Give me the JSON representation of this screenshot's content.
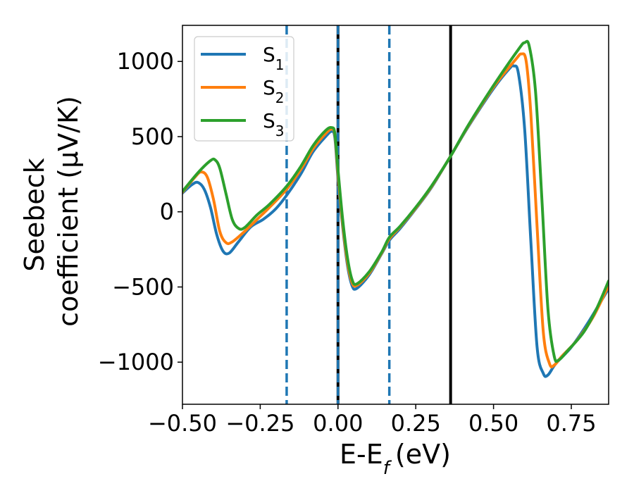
{
  "chart_data": {
    "type": "line",
    "xlabel": "E-E",
    "xlabel_sub": "f",
    "xlabel_unit": "(eV)",
    "ylabel_line1": "Seebeck",
    "ylabel_line2": "coefficient  (μV/K)",
    "xlim": [
      -0.5,
      0.87
    ],
    "ylim": [
      -1280,
      1240
    ],
    "xticks": [
      {
        "value": -0.5,
        "label": "−0.50"
      },
      {
        "value": -0.25,
        "label": "−0.25"
      },
      {
        "value": 0.0,
        "label": "0.00"
      },
      {
        "value": 0.25,
        "label": "0.25"
      },
      {
        "value": 0.5,
        "label": "0.50"
      },
      {
        "value": 0.75,
        "label": "0.75"
      }
    ],
    "yticks": [
      {
        "value": 1000,
        "label": "1000"
      },
      {
        "value": 500,
        "label": "500"
      },
      {
        "value": 0,
        "label": "0"
      },
      {
        "value": -500,
        "label": "−500"
      },
      {
        "value": -1000,
        "label": "−1000"
      }
    ],
    "legend_position": "top-left",
    "vlines": [
      {
        "x": -0.165,
        "color": "#1f77b4",
        "style": "dashed"
      },
      {
        "x": 0.0,
        "color": "#000000",
        "style": "solid"
      },
      {
        "x": 0.0,
        "color": "#1f77b4",
        "style": "dashed"
      },
      {
        "x": 0.165,
        "color": "#1f77b4",
        "style": "dashed"
      },
      {
        "x": 0.362,
        "color": "#000000",
        "style": "solid"
      }
    ],
    "series": [
      {
        "name": "S",
        "sub": "1",
        "color": "#1f77b4",
        "points": [
          [
            -0.5,
            125
          ],
          [
            -0.47,
            180
          ],
          [
            -0.45,
            195
          ],
          [
            -0.43,
            150
          ],
          [
            -0.41,
            30
          ],
          [
            -0.39,
            -150
          ],
          [
            -0.37,
            -260
          ],
          [
            -0.35,
            -275
          ],
          [
            -0.32,
            -200
          ],
          [
            -0.28,
            -100
          ],
          [
            -0.24,
            -50
          ],
          [
            -0.2,
            20
          ],
          [
            -0.165,
            110
          ],
          [
            -0.12,
            250
          ],
          [
            -0.08,
            400
          ],
          [
            -0.04,
            500
          ],
          [
            -0.02,
            535
          ],
          [
            -0.01,
            490
          ],
          [
            0.0,
            220
          ],
          [
            0.015,
            -100
          ],
          [
            0.03,
            -350
          ],
          [
            0.045,
            -490
          ],
          [
            0.06,
            -510
          ],
          [
            0.1,
            -420
          ],
          [
            0.14,
            -280
          ],
          [
            0.165,
            -190
          ],
          [
            0.2,
            -110
          ],
          [
            0.25,
            20
          ],
          [
            0.3,
            160
          ],
          [
            0.362,
            370
          ],
          [
            0.42,
            570
          ],
          [
            0.5,
            820
          ],
          [
            0.55,
            950
          ],
          [
            0.565,
            970
          ],
          [
            0.58,
            920
          ],
          [
            0.6,
            550
          ],
          [
            0.62,
            -200
          ],
          [
            0.64,
            -900
          ],
          [
            0.66,
            -1075
          ],
          [
            0.675,
            -1085
          ],
          [
            0.7,
            -1010
          ],
          [
            0.75,
            -900
          ],
          [
            0.8,
            -750
          ],
          [
            0.87,
            -510
          ]
        ]
      },
      {
        "name": "S",
        "sub": "2",
        "color": "#ff7f0e",
        "points": [
          [
            -0.5,
            130
          ],
          [
            -0.46,
            230
          ],
          [
            -0.44,
            265
          ],
          [
            -0.42,
            230
          ],
          [
            -0.4,
            80
          ],
          [
            -0.38,
            -130
          ],
          [
            -0.36,
            -205
          ],
          [
            -0.34,
            -200
          ],
          [
            -0.3,
            -130
          ],
          [
            -0.26,
            -50
          ],
          [
            -0.22,
            30
          ],
          [
            -0.165,
            150
          ],
          [
            -0.12,
            280
          ],
          [
            -0.08,
            420
          ],
          [
            -0.04,
            520
          ],
          [
            -0.02,
            550
          ],
          [
            -0.01,
            510
          ],
          [
            0.0,
            250
          ],
          [
            0.015,
            -80
          ],
          [
            0.03,
            -330
          ],
          [
            0.045,
            -470
          ],
          [
            0.06,
            -490
          ],
          [
            0.1,
            -410
          ],
          [
            0.14,
            -275
          ],
          [
            0.165,
            -180
          ],
          [
            0.2,
            -100
          ],
          [
            0.25,
            25
          ],
          [
            0.3,
            165
          ],
          [
            0.362,
            370
          ],
          [
            0.42,
            575
          ],
          [
            0.5,
            830
          ],
          [
            0.57,
            1010
          ],
          [
            0.59,
            1050
          ],
          [
            0.605,
            1000
          ],
          [
            0.62,
            650
          ],
          [
            0.64,
            -100
          ],
          [
            0.66,
            -800
          ],
          [
            0.68,
            -1010
          ],
          [
            0.695,
            -1020
          ],
          [
            0.72,
            -960
          ],
          [
            0.77,
            -850
          ],
          [
            0.82,
            -700
          ],
          [
            0.87,
            -490
          ]
        ]
      },
      {
        "name": "S",
        "sub": "3",
        "color": "#2ca02c",
        "points": [
          [
            -0.5,
            135
          ],
          [
            -0.45,
            260
          ],
          [
            -0.41,
            340
          ],
          [
            -0.395,
            345
          ],
          [
            -0.38,
            290
          ],
          [
            -0.36,
            120
          ],
          [
            -0.34,
            -50
          ],
          [
            -0.32,
            -110
          ],
          [
            -0.3,
            -105
          ],
          [
            -0.26,
            -20
          ],
          [
            -0.22,
            50
          ],
          [
            -0.165,
            170
          ],
          [
            -0.12,
            300
          ],
          [
            -0.08,
            440
          ],
          [
            -0.04,
            540
          ],
          [
            -0.02,
            560
          ],
          [
            -0.01,
            520
          ],
          [
            0.0,
            280
          ],
          [
            0.015,
            -50
          ],
          [
            0.03,
            -300
          ],
          [
            0.045,
            -450
          ],
          [
            0.06,
            -480
          ],
          [
            0.1,
            -400
          ],
          [
            0.14,
            -270
          ],
          [
            0.165,
            -170
          ],
          [
            0.2,
            -95
          ],
          [
            0.25,
            30
          ],
          [
            0.3,
            170
          ],
          [
            0.362,
            370
          ],
          [
            0.42,
            580
          ],
          [
            0.5,
            840
          ],
          [
            0.58,
            1080
          ],
          [
            0.6,
            1125
          ],
          [
            0.615,
            1100
          ],
          [
            0.635,
            800
          ],
          [
            0.655,
            100
          ],
          [
            0.675,
            -650
          ],
          [
            0.695,
            -960
          ],
          [
            0.71,
            -985
          ],
          [
            0.74,
            -920
          ],
          [
            0.79,
            -800
          ],
          [
            0.83,
            -650
          ],
          [
            0.87,
            -460
          ]
        ]
      }
    ]
  }
}
